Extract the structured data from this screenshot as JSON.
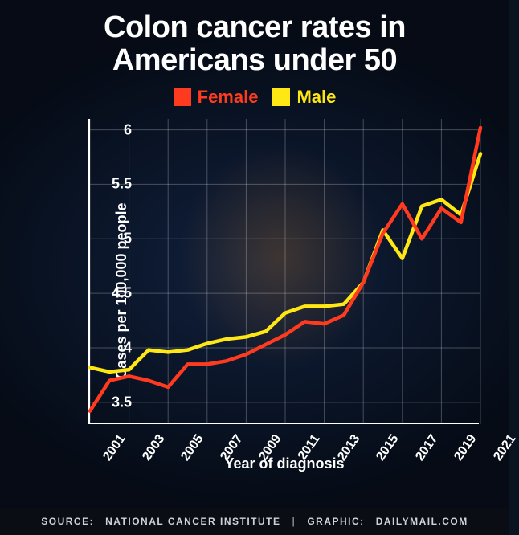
{
  "title_line1": "Colon cancer rates in",
  "title_line2": "Americans under 50",
  "legend": {
    "female": {
      "label": "Female",
      "color": "#ff3b1f"
    },
    "male": {
      "label": "Male",
      "color": "#ffe714"
    }
  },
  "chart": {
    "type": "line",
    "background_color": "transparent",
    "text_color": "#ffffff",
    "axis_color": "#ffffff",
    "grid_color": "rgba(255,255,255,0.25)",
    "line_width": 4.5,
    "xlabel": "Year of diagnosis",
    "ylabel": "Cases per 100,000 people",
    "xlim": [
      2001,
      2021
    ],
    "ylim": [
      3.3,
      6.1
    ],
    "xticks": [
      2001,
      2003,
      2005,
      2007,
      2009,
      2011,
      2013,
      2015,
      2017,
      2019,
      2021
    ],
    "yticks": [
      3.5,
      4,
      4.5,
      5,
      5.5,
      6
    ],
    "ytick_labels": [
      "3.5",
      "4",
      "4.5",
      "5",
      "5.5",
      "6"
    ],
    "label_fontsize": 18,
    "tick_fontsize": 17,
    "series": {
      "female": {
        "color": "#ff3b1f",
        "x": [
          2001,
          2002,
          2003,
          2004,
          2005,
          2006,
          2007,
          2008,
          2009,
          2010,
          2011,
          2012,
          2013,
          2014,
          2015,
          2016,
          2017,
          2018,
          2019,
          2020,
          2021
        ],
        "y": [
          3.42,
          3.7,
          3.74,
          3.7,
          3.64,
          3.85,
          3.85,
          3.88,
          3.94,
          4.03,
          4.12,
          4.24,
          4.22,
          4.3,
          4.6,
          5.05,
          5.32,
          5.0,
          5.28,
          5.15,
          6.02
        ]
      },
      "male": {
        "color": "#ffe714",
        "x": [
          2001,
          2002,
          2003,
          2004,
          2005,
          2006,
          2007,
          2008,
          2009,
          2010,
          2011,
          2012,
          2013,
          2014,
          2015,
          2016,
          2017,
          2018,
          2019,
          2020,
          2021
        ],
        "y": [
          3.82,
          3.78,
          3.8,
          3.98,
          3.96,
          3.98,
          4.04,
          4.08,
          4.1,
          4.15,
          4.32,
          4.38,
          4.38,
          4.4,
          4.6,
          5.08,
          4.82,
          5.3,
          5.36,
          5.22,
          5.78
        ]
      }
    }
  },
  "footer": {
    "source_prefix": "SOURCE:",
    "source": "NATIONAL CANCER INSTITUTE",
    "graphic_prefix": "GRAPHIC:",
    "graphic": "DAILYMAIL.COM"
  }
}
